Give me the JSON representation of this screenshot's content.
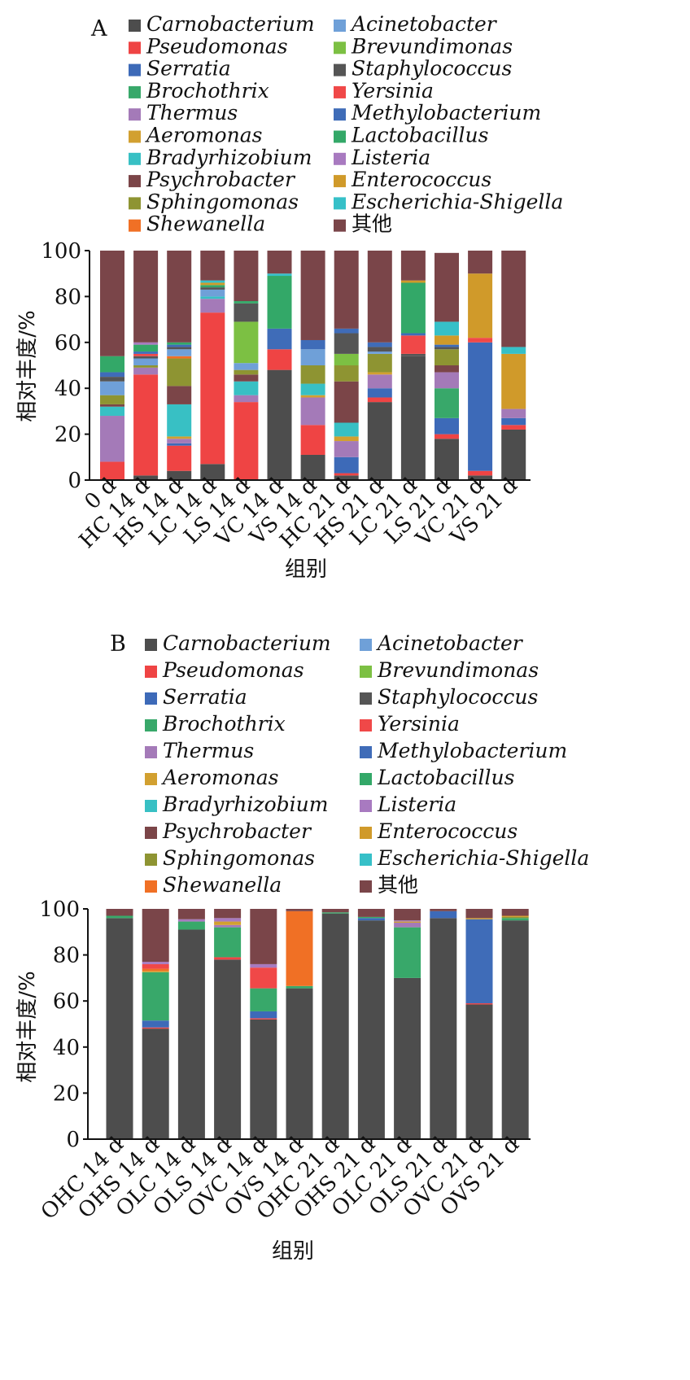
{
  "chart_data": [
    {
      "type": "bar",
      "stacked": true,
      "panel_label": "A",
      "xlabel": "组别",
      "ylabel": "相对丰度/%",
      "ylim": [
        0,
        100
      ],
      "yticks": [
        0,
        20,
        40,
        60,
        80,
        100
      ],
      "categories": [
        "0 d",
        "HC 14 d",
        "HS 14 d",
        "LC 14 d",
        "LS 14 d",
        "VC 14 d",
        "VS 14 d",
        "HC 21 d",
        "HS 21 d",
        "LC 21 d",
        "LS 21 d",
        "VC 21 d",
        "VS 21 d"
      ],
      "series": [
        {
          "name": "Carnobacterium",
          "color": "#4d4d4d",
          "values": [
            0,
            2,
            4,
            7,
            0,
            48,
            11,
            2,
            34,
            54,
            18,
            2,
            22
          ]
        },
        {
          "name": "Pseudomonas",
          "color": "#ef4444",
          "values": [
            8,
            44,
            11,
            66,
            34,
            9,
            13,
            1,
            2,
            0,
            2,
            2,
            2
          ]
        },
        {
          "name": "Serratia",
          "color": "#3d6ab8",
          "values": [
            0,
            0,
            1,
            0,
            0,
            0,
            0,
            7,
            4,
            0,
            7,
            56,
            3
          ]
        },
        {
          "name": "Brochothrix",
          "color": "#38a86a",
          "values": [
            0,
            0,
            0,
            0,
            0,
            0,
            0,
            0,
            0,
            0,
            13,
            0,
            0
          ]
        },
        {
          "name": "Thermus",
          "color": "#a47ab8",
          "values": [
            20,
            3,
            2,
            6,
            3,
            0,
            12,
            7,
            6,
            0,
            7,
            0,
            4
          ]
        },
        {
          "name": "Aeromonas",
          "color": "#d2a030",
          "values": [
            0,
            0,
            1,
            0,
            0,
            0,
            1,
            2,
            1,
            0,
            0,
            0,
            0
          ]
        },
        {
          "name": "Bradyrhizobium",
          "color": "#38c0c4",
          "values": [
            4,
            0,
            14,
            1,
            6,
            0,
            5,
            6,
            0,
            0,
            0,
            0,
            0
          ]
        },
        {
          "name": "Psychrobacter",
          "color": "#7b4548",
          "values": [
            1,
            0,
            8,
            0,
            3,
            0,
            0,
            18,
            0,
            0,
            3,
            0,
            0
          ]
        },
        {
          "name": "Sphingomonas",
          "color": "#8e9432",
          "values": [
            4,
            1,
            12,
            0,
            2,
            0,
            8,
            7,
            8,
            0,
            7,
            0,
            0
          ]
        },
        {
          "name": "Shewanella",
          "color": "#f07025",
          "values": [
            0,
            0,
            1,
            0,
            0,
            0,
            0,
            0,
            0,
            0,
            0,
            0,
            0
          ]
        },
        {
          "name": "Acinetobacter",
          "color": "#6fa0d8",
          "values": [
            6,
            3,
            3,
            3,
            3,
            0,
            7,
            0,
            1,
            0,
            0,
            0,
            0
          ]
        },
        {
          "name": "Brevundimonas",
          "color": "#7cc043",
          "values": [
            0,
            0,
            0,
            0,
            18,
            0,
            0,
            5,
            0,
            0,
            0,
            0,
            0
          ]
        },
        {
          "name": "Staphylococcus",
          "color": "#555555",
          "values": [
            2,
            1,
            1,
            1,
            8,
            0,
            0,
            9,
            2,
            1,
            1,
            0,
            0
          ]
        },
        {
          "name": "Yersinia",
          "color": "#f04848",
          "values": [
            0,
            1,
            0,
            0,
            0,
            0,
            0,
            0,
            0,
            8,
            0,
            2,
            0
          ]
        },
        {
          "name": "Methylobacterium",
          "color": "#3f6cb8",
          "values": [
            2,
            1,
            1,
            0,
            0,
            9,
            4,
            2,
            2,
            1,
            1,
            0,
            0
          ]
        },
        {
          "name": "Lactobacillus",
          "color": "#33a868",
          "values": [
            7,
            3,
            1,
            1,
            1,
            23,
            0,
            0,
            0,
            22,
            0,
            0,
            0
          ]
        },
        {
          "name": "Listeria",
          "color": "#a87ac0",
          "values": [
            0,
            1,
            0,
            0,
            0,
            0,
            0,
            0,
            0,
            0,
            0,
            0,
            0
          ]
        },
        {
          "name": "Enterococcus",
          "color": "#d09a2a",
          "values": [
            0,
            0,
            0,
            1,
            0,
            0,
            0,
            0,
            0,
            1,
            4,
            28,
            24
          ]
        },
        {
          "name": "Escherichia-Shigella",
          "color": "#36c0c8",
          "values": [
            0,
            0,
            0,
            1,
            0,
            1,
            0,
            0,
            0,
            0,
            6,
            0,
            3
          ]
        },
        {
          "name": "其他",
          "color": "#7a4549",
          "values": [
            46,
            40,
            40,
            13,
            22,
            10,
            39,
            34,
            40,
            13,
            30,
            10,
            42
          ]
        }
      ]
    },
    {
      "type": "bar",
      "stacked": true,
      "panel_label": "B",
      "xlabel": "组别",
      "ylabel": "相对丰度/%",
      "ylim": [
        0,
        100
      ],
      "yticks": [
        0,
        20,
        40,
        60,
        80,
        100
      ],
      "categories": [
        "OHC 14 d",
        "OHS 14 d",
        "OLC 14 d",
        "OLS 14 d",
        "OVC 14 d",
        "OVS 14 d",
        "OHC 21 d",
        "OHS 21 d",
        "OLC 21 d",
        "OLS 21 d",
        "OVC 21 d",
        "OVS 21 d"
      ],
      "series": [
        {
          "name": "Carnobacterium",
          "color": "#4d4d4d",
          "values": [
            96,
            48,
            91,
            78,
            52,
            65.5,
            98,
            95,
            70,
            96,
            58.5,
            95
          ]
        },
        {
          "name": "Pseudomonas",
          "color": "#ef4444",
          "values": [
            0,
            0.5,
            0,
            1,
            0.5,
            0,
            0,
            0,
            0,
            0,
            0.5,
            0
          ]
        },
        {
          "name": "Serratia",
          "color": "#3d6ab8",
          "values": [
            0,
            3,
            0,
            0,
            3,
            0,
            0,
            1,
            0,
            3,
            0,
            0
          ]
        },
        {
          "name": "Brochothrix",
          "color": "#38a86a",
          "values": [
            1,
            21,
            3.5,
            13,
            10,
            1,
            0.5,
            0.5,
            22,
            0,
            0,
            1
          ]
        },
        {
          "name": "Thermus",
          "color": "#a47ab8",
          "values": [
            0,
            0,
            0,
            1,
            0,
            0,
            0,
            0,
            2,
            0,
            0,
            0
          ]
        },
        {
          "name": "Aeromonas",
          "color": "#d2a030",
          "values": [
            0,
            0.5,
            0,
            1.5,
            0,
            0,
            0,
            0,
            0.5,
            0,
            0,
            0
          ]
        },
        {
          "name": "Bradyrhizobium",
          "color": "#38c0c4",
          "values": [
            0,
            0,
            0,
            0,
            0,
            0,
            0,
            0,
            0,
            0,
            0,
            0
          ]
        },
        {
          "name": "Psychrobacter",
          "color": "#7b4548",
          "values": [
            0,
            0,
            0,
            0,
            0,
            0,
            0,
            0,
            0,
            0,
            0,
            0
          ]
        },
        {
          "name": "Sphingomonas",
          "color": "#8e9432",
          "values": [
            0,
            0,
            0,
            0,
            0,
            0,
            0,
            0,
            0,
            0,
            0,
            0.5
          ]
        },
        {
          "name": "Shewanella",
          "color": "#f07025",
          "values": [
            0,
            1,
            0,
            0,
            0,
            32.5,
            0,
            0,
            0,
            0,
            0,
            0
          ]
        },
        {
          "name": "Acinetobacter",
          "color": "#6fa0d8",
          "values": [
            0,
            0,
            0,
            0,
            0,
            0,
            0,
            0,
            0,
            0,
            0,
            0
          ]
        },
        {
          "name": "Brevundimonas",
          "color": "#7cc043",
          "values": [
            0,
            0,
            0,
            0,
            0,
            0,
            0,
            0,
            0,
            0,
            0,
            0
          ]
        },
        {
          "name": "Staphylococcus",
          "color": "#555555",
          "values": [
            0,
            0,
            0,
            0,
            0,
            0,
            0,
            0,
            0,
            0,
            0,
            0
          ]
        },
        {
          "name": "Yersinia",
          "color": "#f04848",
          "values": [
            0,
            2,
            0,
            0,
            9,
            0,
            0,
            0,
            0,
            0,
            0,
            0
          ]
        },
        {
          "name": "Methylobacterium",
          "color": "#3f6cb8",
          "values": [
            0,
            0,
            0,
            0,
            0,
            0,
            0,
            0,
            0,
            0,
            36.5,
            0
          ]
        },
        {
          "name": "Lactobacillus",
          "color": "#33a868",
          "values": [
            0,
            0,
            0,
            0,
            0,
            0,
            0,
            0,
            0,
            0,
            0,
            0
          ]
        },
        {
          "name": "Listeria",
          "color": "#a87ac0",
          "values": [
            0,
            1,
            1,
            1.5,
            1.5,
            0,
            0,
            0,
            0.5,
            0,
            0,
            0
          ]
        },
        {
          "name": "Enterococcus",
          "color": "#d09a2a",
          "values": [
            0,
            0,
            0,
            0,
            0,
            0,
            0,
            0,
            0,
            0,
            0.5,
            0.5
          ]
        },
        {
          "name": "Escherichia-Shigella",
          "color": "#36c0c8",
          "values": [
            0,
            0,
            0,
            0,
            0,
            0,
            0,
            0,
            0,
            0,
            0,
            0
          ]
        },
        {
          "name": "其他",
          "color": "#7a4549",
          "values": [
            3,
            23,
            4.5,
            4,
            24,
            1,
            1.5,
            3.5,
            5,
            1,
            4,
            3
          ]
        }
      ]
    }
  ]
}
